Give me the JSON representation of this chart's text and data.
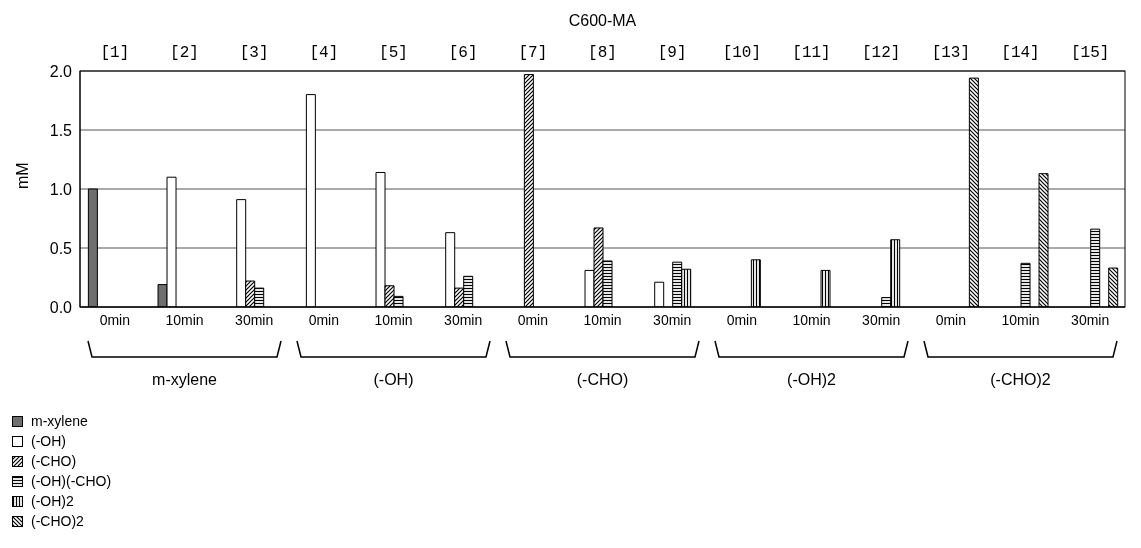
{
  "chart_data": {
    "type": "bar",
    "title": "C600-MA",
    "ylabel": "mM",
    "categories": [
      "0min",
      "10min",
      "30min",
      "0min",
      "10min",
      "30min",
      "0min",
      "10min",
      "30min",
      "0min",
      "10min",
      "30min",
      "0min",
      "10min",
      "30min"
    ],
    "series": [
      {
        "name": "m-xylene",
        "color": "#6e6e6e",
        "values": [
          1.0,
          0.19,
          null,
          null,
          null,
          null,
          null,
          null,
          null,
          null,
          null,
          null,
          null,
          null,
          null
        ]
      },
      {
        "name": "(-OH)",
        "color": "#ffffff",
        "values": [
          null,
          1.1,
          0.91,
          1.8,
          1.14,
          0.63,
          null,
          0.31,
          0.21,
          null,
          null,
          null,
          null,
          null,
          null
        ]
      },
      {
        "name": "(-CHO)",
        "color": "#000000",
        "values": [
          null,
          null,
          0.22,
          null,
          0.18,
          0.16,
          1.97,
          0.67,
          null,
          null,
          null,
          null,
          null,
          null,
          null
        ]
      },
      {
        "name": "(-OH)(-CHO)",
        "color": "#000000",
        "values": [
          null,
          null,
          0.16,
          null,
          0.09,
          0.26,
          null,
          0.39,
          0.38,
          null,
          null,
          0.08,
          null,
          0.37,
          0.66
        ]
      },
      {
        "name": "(-OH)2",
        "color": "#000000",
        "values": [
          null,
          null,
          null,
          null,
          null,
          null,
          null,
          null,
          0.32,
          0.4,
          0.31,
          0.57,
          null,
          null,
          null
        ]
      },
      {
        "name": "(-CHO)2",
        "color": "#000000",
        "values": [
          null,
          null,
          null,
          null,
          null,
          null,
          null,
          null,
          null,
          null,
          null,
          null,
          1.94,
          1.13,
          0.33
        ]
      }
    ],
    "annotations": [
      "[1]",
      "[2]",
      "[3]",
      "[4]",
      "[5]",
      "[6]",
      "[7]",
      "[8]",
      "[9]",
      "[10]",
      "[11]",
      "[12]",
      "[13]",
      "[14]",
      "[15]",
      "m-xylene",
      "(-OH)",
      "(-CHO)",
      "(-OH)2",
      "(-CHO)2"
    ],
    "ylim": [
      0,
      2.0
    ],
    "yticks": [
      {
        "value": 0,
        "label": "0.0"
      },
      {
        "value": 0.5,
        "label": "0.5"
      },
      {
        "value": 1,
        "label": "1.0"
      },
      {
        "value": 1.5,
        "label": "1.5"
      },
      {
        "value": 2,
        "label": "2.0"
      }
    ],
    "grid": "y",
    "legend": "bottom left"
  }
}
